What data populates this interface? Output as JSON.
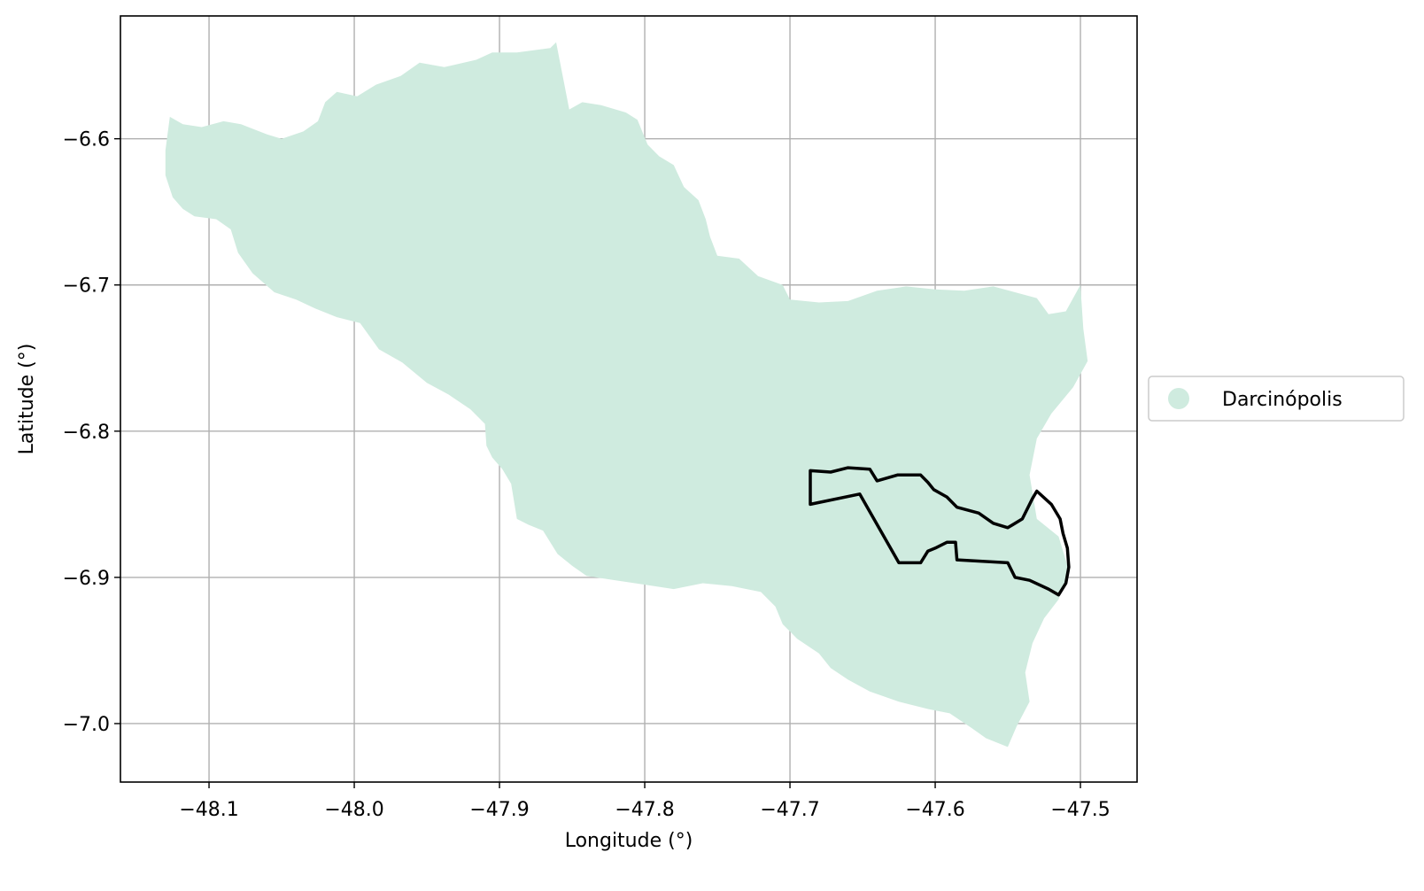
{
  "chart_data": {
    "type": "map",
    "xlabel": "Longitude (°)",
    "ylabel": "Latitude (°)",
    "xlim": [
      -48.161,
      -47.461
    ],
    "ylim": [
      -7.04,
      -6.516
    ],
    "xticks": [
      {
        "value": -48.1,
        "label": "−48.1"
      },
      {
        "value": -48.0,
        "label": "−48.0"
      },
      {
        "value": -47.9,
        "label": "−47.9"
      },
      {
        "value": -47.8,
        "label": "−47.8"
      },
      {
        "value": -47.7,
        "label": "−47.7"
      },
      {
        "value": -47.6,
        "label": "−47.6"
      },
      {
        "value": -47.5,
        "label": "−47.5"
      }
    ],
    "yticks": [
      {
        "value": -6.6,
        "label": "−6.6"
      },
      {
        "value": -6.7,
        "label": "−6.7"
      },
      {
        "value": -6.8,
        "label": "−6.8"
      },
      {
        "value": -6.9,
        "label": "−6.9"
      },
      {
        "value": -7.0,
        "label": "−7.0"
      }
    ],
    "grid": true,
    "legend": {
      "placement": "right, outside plot",
      "entries": [
        {
          "name": "Darcinópolis",
          "color": "#cfebdf"
        }
      ]
    },
    "region": {
      "name": "Darcinópolis",
      "color": "#cfebdf",
      "boundary_lonlat": [
        [
          -48.127,
          -6.585
        ],
        [
          -48.118,
          -6.59
        ],
        [
          -48.105,
          -6.592
        ],
        [
          -48.09,
          -6.588
        ],
        [
          -48.078,
          -6.59
        ],
        [
          -48.06,
          -6.597
        ],
        [
          -48.05,
          -6.6
        ],
        [
          -48.035,
          -6.595
        ],
        [
          -48.025,
          -6.588
        ],
        [
          -48.02,
          -6.575
        ],
        [
          -48.012,
          -6.568
        ],
        [
          -47.998,
          -6.571
        ],
        [
          -47.985,
          -6.563
        ],
        [
          -47.968,
          -6.557
        ],
        [
          -47.955,
          -6.548
        ],
        [
          -47.938,
          -6.551
        ],
        [
          -47.916,
          -6.546
        ],
        [
          -47.905,
          -6.541
        ],
        [
          -47.888,
          -6.541
        ],
        [
          -47.865,
          -6.538
        ],
        [
          -47.861,
          -6.534
        ],
        [
          -47.852,
          -6.58
        ],
        [
          -47.843,
          -6.575
        ],
        [
          -47.83,
          -6.577
        ],
        [
          -47.813,
          -6.582
        ],
        [
          -47.805,
          -6.587
        ],
        [
          -47.798,
          -6.604
        ],
        [
          -47.79,
          -6.612
        ],
        [
          -47.78,
          -6.618
        ],
        [
          -47.773,
          -6.633
        ],
        [
          -47.763,
          -6.642
        ],
        [
          -47.758,
          -6.655
        ],
        [
          -47.755,
          -6.667
        ],
        [
          -47.75,
          -6.68
        ],
        [
          -47.735,
          -6.682
        ],
        [
          -47.722,
          -6.694
        ],
        [
          -47.705,
          -6.7
        ],
        [
          -47.7,
          -6.71
        ],
        [
          -47.68,
          -6.712
        ],
        [
          -47.66,
          -6.711
        ],
        [
          -47.64,
          -6.704
        ],
        [
          -47.62,
          -6.701
        ],
        [
          -47.6,
          -6.703
        ],
        [
          -47.58,
          -6.704
        ],
        [
          -47.56,
          -6.701
        ],
        [
          -47.545,
          -6.705
        ],
        [
          -47.53,
          -6.709
        ],
        [
          -47.522,
          -6.72
        ],
        [
          -47.51,
          -6.718
        ],
        [
          -47.5,
          -6.7
        ],
        [
          -47.498,
          -6.73
        ],
        [
          -47.495,
          -6.752
        ],
        [
          -47.505,
          -6.77
        ],
        [
          -47.52,
          -6.788
        ],
        [
          -47.53,
          -6.805
        ],
        [
          -47.535,
          -6.83
        ],
        [
          -47.53,
          -6.86
        ],
        [
          -47.515,
          -6.872
        ],
        [
          -47.508,
          -6.895
        ],
        [
          -47.515,
          -6.915
        ],
        [
          -47.525,
          -6.928
        ],
        [
          -47.533,
          -6.945
        ],
        [
          -47.538,
          -6.965
        ],
        [
          -47.535,
          -6.985
        ],
        [
          -47.544,
          -7.002
        ],
        [
          -47.55,
          -7.016
        ],
        [
          -47.565,
          -7.01
        ],
        [
          -47.575,
          -7.003
        ],
        [
          -47.59,
          -6.993
        ],
        [
          -47.605,
          -6.99
        ],
        [
          -47.625,
          -6.985
        ],
        [
          -47.645,
          -6.978
        ],
        [
          -47.66,
          -6.97
        ],
        [
          -47.672,
          -6.962
        ],
        [
          -47.68,
          -6.952
        ],
        [
          -47.695,
          -6.942
        ],
        [
          -47.705,
          -6.932
        ],
        [
          -47.71,
          -6.92
        ],
        [
          -47.72,
          -6.91
        ],
        [
          -47.74,
          -6.906
        ],
        [
          -47.76,
          -6.904
        ],
        [
          -47.78,
          -6.908
        ],
        [
          -47.8,
          -6.905
        ],
        [
          -47.82,
          -6.902
        ],
        [
          -47.84,
          -6.899
        ],
        [
          -47.85,
          -6.892
        ],
        [
          -47.86,
          -6.884
        ],
        [
          -47.87,
          -6.868
        ],
        [
          -47.88,
          -6.864
        ],
        [
          -47.888,
          -6.86
        ],
        [
          -47.892,
          -6.836
        ],
        [
          -47.898,
          -6.826
        ],
        [
          -47.905,
          -6.818
        ],
        [
          -47.909,
          -6.81
        ],
        [
          -47.91,
          -6.795
        ],
        [
          -47.92,
          -6.785
        ],
        [
          -47.935,
          -6.775
        ],
        [
          -47.95,
          -6.767
        ],
        [
          -47.967,
          -6.753
        ],
        [
          -47.983,
          -6.744
        ],
        [
          -47.996,
          -6.726
        ],
        [
          -48.012,
          -6.722
        ],
        [
          -48.027,
          -6.716
        ],
        [
          -48.04,
          -6.71
        ],
        [
          -48.055,
          -6.705
        ],
        [
          -48.07,
          -6.692
        ],
        [
          -48.08,
          -6.678
        ],
        [
          -48.085,
          -6.662
        ],
        [
          -48.095,
          -6.655
        ],
        [
          -48.11,
          -6.653
        ],
        [
          -48.118,
          -6.648
        ],
        [
          -48.125,
          -6.64
        ],
        [
          -48.13,
          -6.625
        ],
        [
          -48.13,
          -6.608
        ],
        [
          -48.127,
          -6.585
        ]
      ]
    },
    "overlay": {
      "stroke_color": "#000000",
      "boundary_lonlat": [
        [
          -47.686,
          -6.827
        ],
        [
          -47.672,
          -6.828
        ],
        [
          -47.66,
          -6.825
        ],
        [
          -47.645,
          -6.826
        ],
        [
          -47.64,
          -6.834
        ],
        [
          -47.626,
          -6.83
        ],
        [
          -47.61,
          -6.83
        ],
        [
          -47.605,
          -6.835
        ],
        [
          -47.601,
          -6.84
        ],
        [
          -47.592,
          -6.845
        ],
        [
          -47.585,
          -6.852
        ],
        [
          -47.57,
          -6.856
        ],
        [
          -47.56,
          -6.863
        ],
        [
          -47.55,
          -6.866
        ],
        [
          -47.54,
          -6.86
        ],
        [
          -47.533,
          -6.846
        ],
        [
          -47.53,
          -6.841
        ],
        [
          -47.52,
          -6.85
        ],
        [
          -47.514,
          -6.86
        ],
        [
          -47.512,
          -6.87
        ],
        [
          -47.509,
          -6.88
        ],
        [
          -47.508,
          -6.893
        ],
        [
          -47.51,
          -6.904
        ],
        [
          -47.515,
          -6.912
        ],
        [
          -47.522,
          -6.908
        ],
        [
          -47.535,
          -6.902
        ],
        [
          -47.545,
          -6.9
        ],
        [
          -47.55,
          -6.89
        ],
        [
          -47.585,
          -6.888
        ],
        [
          -47.586,
          -6.876
        ],
        [
          -47.592,
          -6.876
        ],
        [
          -47.6,
          -6.88
        ],
        [
          -47.605,
          -6.882
        ],
        [
          -47.61,
          -6.89
        ],
        [
          -47.625,
          -6.89
        ],
        [
          -47.652,
          -6.843
        ],
        [
          -47.686,
          -6.85
        ],
        [
          -47.686,
          -6.827
        ]
      ]
    }
  }
}
